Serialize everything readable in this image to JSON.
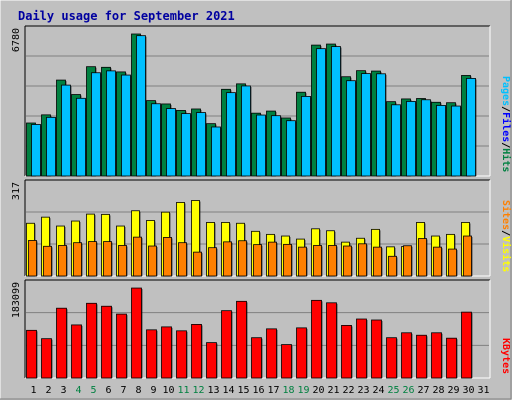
{
  "chart_data": {
    "type": "bar",
    "title": "Daily usage for September 2021",
    "categories": [
      "1",
      "2",
      "3",
      "4",
      "5",
      "6",
      "7",
      "8",
      "9",
      "10",
      "11",
      "12",
      "13",
      "14",
      "15",
      "16",
      "17",
      "18",
      "19",
      "20",
      "21",
      "22",
      "23",
      "24",
      "25",
      "26",
      "27",
      "28",
      "29",
      "30",
      "31"
    ],
    "weekend_days": [
      "4",
      "5",
      "11",
      "12",
      "18",
      "19",
      "25",
      "26"
    ],
    "panels": [
      {
        "name": "hits_files_pages",
        "max_label": "6780",
        "ylim": [
          0,
          6780
        ],
        "legend": [
          {
            "label": "Hits",
            "color": "#008040"
          },
          {
            "label": "Files",
            "color": "#0000ff"
          },
          {
            "label": "Pages",
            "color": "#00c0ff"
          }
        ],
        "series": [
          {
            "name": "Hits",
            "color": "#008040",
            "values": [
              2530,
              2920,
              4580,
              3890,
              5220,
              5190,
              4970,
              6780,
              3600,
              3440,
              3130,
              3200,
              2500,
              4140,
              4400,
              3000,
              3100,
              2770,
              4000,
              6250,
              6300,
              4740,
              5030,
              5010,
              3550,
              3680,
              3700,
              3520,
              3500,
              4800,
              null
            ]
          },
          {
            "name": "Files",
            "color": "#0000ff",
            "values": [
              null,
              null,
              null,
              null,
              null,
              null,
              null,
              null,
              null,
              null,
              null,
              null,
              null,
              null,
              null,
              null,
              null,
              null,
              null,
              null,
              null,
              null,
              null,
              null,
              null,
              null,
              null,
              null,
              null,
              null,
              null
            ]
          },
          {
            "name": "Pages",
            "color": "#00c0ff",
            "values": [
              2460,
              2800,
              4340,
              3710,
              4930,
              5020,
              4820,
              6700,
              3450,
              3220,
              2980,
              3030,
              2340,
              3980,
              4300,
              2910,
              2880,
              2640,
              3800,
              6080,
              6180,
              4550,
              4890,
              4880,
              3400,
              3560,
              3640,
              3370,
              3340,
              4660,
              null
            ]
          }
        ]
      },
      {
        "name": "visits_sites",
        "max_label": "317",
        "ylim": [
          0,
          317
        ],
        "legend": [
          {
            "label": "Visits",
            "color": "#ffff00"
          },
          {
            "label": "Sites",
            "color": "#ff8000"
          }
        ],
        "series": [
          {
            "name": "Visits",
            "color": "#ffff00",
            "values": [
              190,
              212,
              180,
              198,
              223,
              222,
              180,
              235,
              200,
              230,
              265,
              272,
              193,
              193,
              190,
              161,
              150,
              144,
              133,
              170,
              163,
              122,
              136,
              168,
              105,
              106,
              193,
              144,
              150,
              193,
              null
            ]
          },
          {
            "name": "Sites",
            "color": "#ff8000",
            "values": [
              128,
              107,
              110,
              120,
              124,
              124,
              110,
              140,
              108,
              139,
              120,
              86,
              102,
              123,
              127,
              113,
              122,
              114,
              104,
              110,
              110,
              108,
              116,
              104,
              71,
              109,
              135,
              104,
              97,
              144,
              null
            ]
          }
        ]
      },
      {
        "name": "kbytes",
        "max_label": "183099",
        "ylim": [
          0,
          183099
        ],
        "legend": [
          {
            "label": "KBytes",
            "color": "#ff0000"
          }
        ],
        "series": [
          {
            "name": "KBytes",
            "color": "#ff0000",
            "values": [
              97000,
              80000,
              142000,
              108000,
              152000,
              146000,
              130000,
              183000,
              98000,
              104000,
              96000,
              109000,
              72000,
              137000,
              156000,
              82000,
              100000,
              68000,
              102000,
              158000,
              153000,
              107000,
              120000,
              118000,
              82000,
              92000,
              87000,
              92000,
              81000,
              134000,
              null
            ]
          }
        ]
      }
    ]
  }
}
